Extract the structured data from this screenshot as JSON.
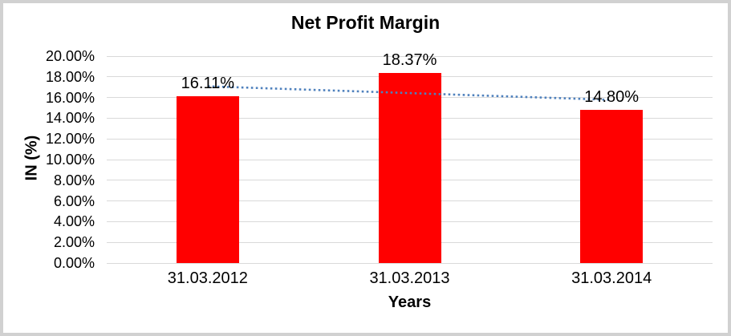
{
  "frame": {
    "background": "#ffffff",
    "border_color": "#d1d1d1"
  },
  "chart_data": {
    "type": "bar",
    "title": "Net Profit Margin",
    "xlabel": "Years",
    "ylabel": "IN (%)",
    "categories": [
      "31.03.2012",
      "31.03.2013",
      "31.03.2014"
    ],
    "series": [
      {
        "name": "Net Profit Margin",
        "values": [
          16.11,
          18.37,
          14.8
        ],
        "color": "#ff0000"
      }
    ],
    "data_labels": [
      "16.11%",
      "18.37%",
      "14.80%"
    ],
    "ylim": [
      0,
      20
    ],
    "ytick_step": 2,
    "ytick_labels": [
      "0.00%",
      "2.00%",
      "4.00%",
      "6.00%",
      "8.00%",
      "10.00%",
      "12.00%",
      "14.00%",
      "16.00%",
      "18.00%",
      "20.00%"
    ],
    "grid": true,
    "gridline_color": "#d9d9d9",
    "legend": "none",
    "trendline": {
      "type": "linear",
      "style": "dotted",
      "color": "#4f81bd"
    }
  }
}
